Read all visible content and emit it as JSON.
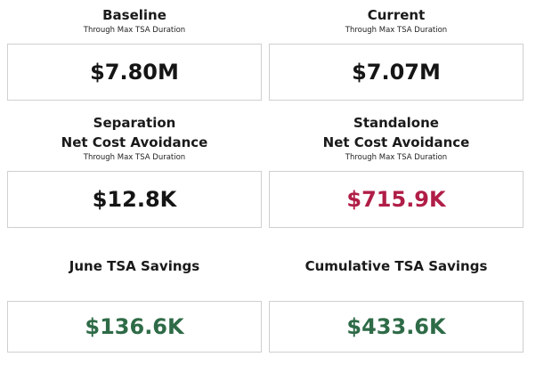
{
  "kpis": {
    "baseline": {
      "title": "Baseline",
      "subtitle": "Through Max TSA Duration",
      "value": "$7.80M"
    },
    "current": {
      "title": "Current",
      "subtitle": "Through Max TSA Duration",
      "value": "$7.07M"
    },
    "separation": {
      "title_line1": "Separation",
      "title_line2": "Net Cost Avoidance",
      "subtitle": "Through Max TSA Duration",
      "value": "$12.8K"
    },
    "standalone": {
      "title_line1": "Standalone",
      "title_line2": "Net Cost Avoidance",
      "subtitle": "Through Max TSA Duration",
      "value": "$715.9K"
    },
    "june_savings": {
      "title": "June TSA Savings",
      "value": "$136.6K"
    },
    "cumulative_savings": {
      "title": "Cumulative TSA Savings",
      "value": "$433.6K"
    }
  },
  "colors": {
    "negative_value": "#b01e47",
    "positive_value": "#2e6b47",
    "neutral_value": "#151515",
    "box_border": "#cfcfcf"
  }
}
